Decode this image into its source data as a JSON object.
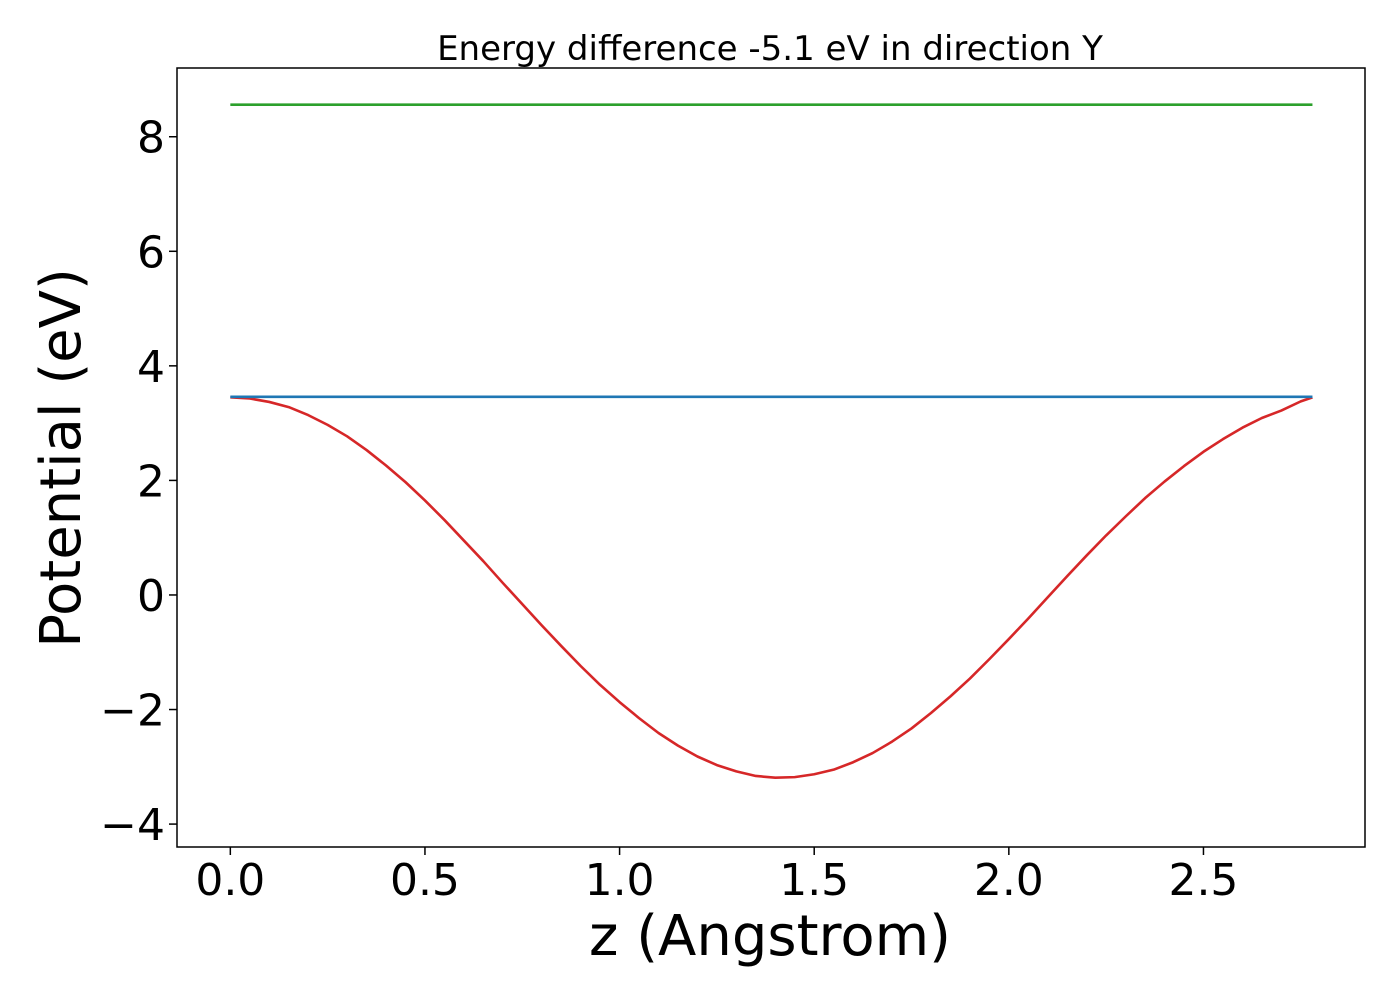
{
  "chart_data": {
    "type": "line",
    "title": "Energy difference -5.1 eV in direction Y",
    "xlabel": "z (Angstrom)",
    "ylabel": "Potential (eV)",
    "xlim": [
      -0.137,
      2.915
    ],
    "ylim": [
      -4.4,
      9.2
    ],
    "grid": false,
    "legend": "none",
    "x_ticks": [
      {
        "value": 0.0,
        "label": "0.0"
      },
      {
        "value": 0.5,
        "label": "0.5"
      },
      {
        "value": 1.0,
        "label": "1.0"
      },
      {
        "value": 1.5,
        "label": "1.5"
      },
      {
        "value": 2.0,
        "label": "2.0"
      },
      {
        "value": 2.5,
        "label": "2.5"
      }
    ],
    "y_ticks": [
      {
        "value": -4,
        "label": "−4"
      },
      {
        "value": -2,
        "label": "−2"
      },
      {
        "value": 0,
        "label": "0"
      },
      {
        "value": 2,
        "label": "2"
      },
      {
        "value": 4,
        "label": "4"
      },
      {
        "value": 6,
        "label": "6"
      },
      {
        "value": 8,
        "label": "8"
      }
    ],
    "series": [
      {
        "color": "#d62728",
        "x": [
          0.0,
          0.05,
          0.1,
          0.15,
          0.2,
          0.25,
          0.3,
          0.35,
          0.4,
          0.45,
          0.5,
          0.55,
          0.6,
          0.65,
          0.7,
          0.75,
          0.8,
          0.85,
          0.9,
          0.95,
          1.0,
          1.05,
          1.1,
          1.15,
          1.2,
          1.25,
          1.3,
          1.35,
          1.4,
          1.45,
          1.5,
          1.55,
          1.6,
          1.65,
          1.7,
          1.75,
          1.8,
          1.85,
          1.9,
          1.95,
          2.0,
          2.05,
          2.1,
          2.15,
          2.2,
          2.25,
          2.3,
          2.35,
          2.4,
          2.45,
          2.5,
          2.55,
          2.6,
          2.65,
          2.7,
          2.75,
          2.78
        ],
        "y": [
          3.45,
          3.43,
          3.37,
          3.28,
          3.14,
          2.97,
          2.77,
          2.53,
          2.26,
          1.97,
          1.65,
          1.31,
          0.95,
          0.59,
          0.21,
          -0.16,
          -0.53,
          -0.89,
          -1.24,
          -1.57,
          -1.87,
          -2.15,
          -2.41,
          -2.63,
          -2.82,
          -2.97,
          -3.08,
          -3.16,
          -3.19,
          -3.18,
          -3.13,
          -3.05,
          -2.92,
          -2.76,
          -2.56,
          -2.33,
          -2.06,
          -1.77,
          -1.46,
          -1.12,
          -0.77,
          -0.41,
          -0.04,
          0.33,
          0.69,
          1.04,
          1.37,
          1.69,
          1.98,
          2.25,
          2.5,
          2.72,
          2.92,
          3.09,
          3.22,
          3.38,
          3.45
        ]
      },
      {
        "color": "#1f77b4",
        "x": [
          0.0,
          2.78
        ],
        "y": [
          3.46,
          3.46
        ]
      },
      {
        "color": "#2ca02c",
        "x": [
          0.0,
          2.78
        ],
        "y": [
          8.56,
          8.56
        ]
      }
    ]
  },
  "colors": {
    "frame": "#000000",
    "background": "#ffffff"
  }
}
